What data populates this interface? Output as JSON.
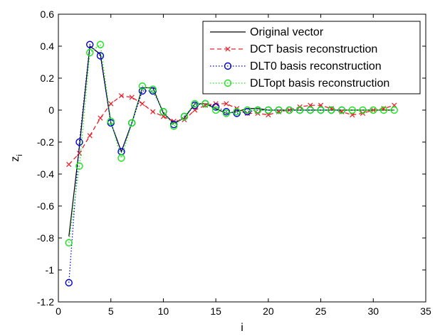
{
  "chart_data": {
    "type": "line",
    "title": "",
    "xlabel": "i",
    "ylabel": "z",
    "ylabel_subscript": "i",
    "xlim": [
      0,
      35
    ],
    "ylim": [
      -1.2,
      0.6
    ],
    "xticks": [
      0,
      5,
      10,
      15,
      20,
      25,
      30,
      35
    ],
    "yticks": [
      -1.2,
      -1,
      -0.8,
      -0.6,
      -0.4,
      -0.2,
      0,
      0.2,
      0.4,
      0.6
    ],
    "xtick_labels": [
      "0",
      "5",
      "10",
      "15",
      "20",
      "25",
      "30",
      "35"
    ],
    "ytick_labels": [
      "-1.2",
      "-1",
      "-0.8",
      "-0.6",
      "-0.4",
      "-0.2",
      "0",
      "0.2",
      "0.4",
      "0.6"
    ],
    "grid": false,
    "legend_position": "top-right",
    "series": [
      {
        "name": "Original vector",
        "color": "#000000",
        "line_style": "solid",
        "marker": "none",
        "x": [
          1,
          2,
          3,
          4,
          5,
          6,
          7,
          8,
          9,
          10,
          11,
          12,
          13,
          14,
          15,
          16,
          17,
          18,
          19,
          20,
          21,
          22,
          23,
          24,
          25,
          26,
          27,
          28,
          29,
          30,
          31,
          32
        ],
        "y": [
          -0.79,
          -0.23,
          0.4,
          0.35,
          -0.08,
          -0.26,
          -0.08,
          0.14,
          0.14,
          -0.02,
          -0.08,
          -0.05,
          0.04,
          0.04,
          0.01,
          -0.02,
          -0.01,
          0.01,
          0.01,
          0.0,
          0.0,
          0.0,
          0.0,
          0.0,
          0.0,
          0.0,
          0.0,
          0.0,
          0.0,
          0.0,
          0.0,
          0.0
        ]
      },
      {
        "name": "DCT basis reconstruction",
        "color": "#e8202a",
        "line_style": "dashed",
        "marker": "x",
        "x": [
          1,
          2,
          3,
          4,
          5,
          6,
          7,
          8,
          9,
          10,
          11,
          12,
          13,
          14,
          15,
          16,
          17,
          18,
          19,
          20,
          21,
          22,
          23,
          24,
          25,
          26,
          27,
          28,
          29,
          30,
          31,
          32
        ],
        "y": [
          -0.34,
          -0.27,
          -0.16,
          -0.05,
          0.04,
          0.09,
          0.08,
          0.04,
          -0.01,
          -0.04,
          -0.07,
          -0.06,
          0.0,
          0.03,
          0.04,
          0.04,
          0.01,
          -0.02,
          -0.02,
          -0.03,
          -0.01,
          0.0,
          0.02,
          0.03,
          0.03,
          0.01,
          -0.01,
          -0.03,
          -0.02,
          0.0,
          0.01,
          0.03
        ]
      },
      {
        "name": "DLT0 basis reconstruction",
        "color": "#0000d0",
        "line_style": "dotted",
        "marker": "o",
        "x": [
          1,
          2,
          3,
          4,
          5,
          6,
          7,
          8,
          9,
          10,
          11,
          12,
          13,
          14,
          15,
          16,
          17,
          18,
          19,
          20,
          21,
          22,
          23,
          24,
          25,
          26,
          27
        ],
        "y": [
          -1.08,
          -0.2,
          0.41,
          0.34,
          -0.08,
          -0.26,
          -0.08,
          0.12,
          0.12,
          -0.01,
          -0.09,
          -0.04,
          0.03,
          0.04,
          0.02,
          -0.01,
          -0.02,
          -0.01,
          0.0,
          0.0,
          0.0,
          0.0,
          0.0,
          0.0,
          0.0,
          0.0,
          0.0
        ]
      },
      {
        "name": "DLTopt basis reconstruction",
        "color": "#19e619",
        "line_style": "dotted",
        "marker": "o",
        "x": [
          1,
          2,
          3,
          4,
          5,
          6,
          7,
          8,
          9,
          10,
          11,
          12,
          13,
          14,
          15,
          16,
          17,
          18,
          19,
          20,
          21,
          22,
          23,
          24,
          25,
          26,
          27,
          28,
          29,
          30,
          31,
          32
        ],
        "y": [
          -0.83,
          -0.35,
          0.36,
          0.41,
          -0.07,
          -0.3,
          -0.08,
          0.15,
          0.13,
          -0.01,
          -0.1,
          -0.04,
          0.04,
          0.04,
          0.0,
          -0.02,
          -0.01,
          0.0,
          0.0,
          0.0,
          0.0,
          0.0,
          0.0,
          0.0,
          0.0,
          0.0,
          0.0,
          0.0,
          0.0,
          0.0,
          0.0,
          0.0
        ]
      }
    ]
  }
}
